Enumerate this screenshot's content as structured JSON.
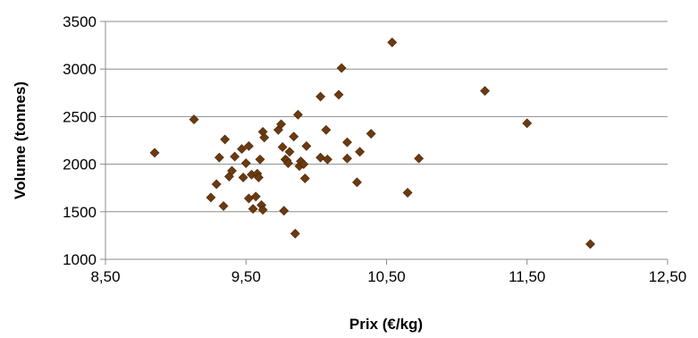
{
  "chart_data": {
    "type": "scatter",
    "title": "",
    "xlabel": "Prix (€/kg)",
    "ylabel": "Volume (tonnes)",
    "xlim": [
      8.5,
      12.5
    ],
    "ylim": [
      1000,
      3500
    ],
    "x_ticks": [
      8.5,
      9.5,
      10.5,
      11.5,
      12.5
    ],
    "x_tick_labels": [
      "8,50",
      "9,50",
      "10,50",
      "11,50",
      "12,50"
    ],
    "y_ticks": [
      1000,
      1500,
      2000,
      2500,
      3000,
      3500
    ],
    "y_tick_labels": [
      "1000",
      "1500",
      "2000",
      "2500",
      "3000",
      "3500"
    ],
    "grid": "horizontal",
    "legend": "none",
    "marker_color": "#6b3a10",
    "series": [
      {
        "points": [
          [
            8.85,
            2120
          ],
          [
            9.13,
            2470
          ],
          [
            9.25,
            1650
          ],
          [
            9.29,
            1790
          ],
          [
            9.31,
            2070
          ],
          [
            9.34,
            1560
          ],
          [
            9.35,
            2260
          ],
          [
            9.38,
            1870
          ],
          [
            9.4,
            1930
          ],
          [
            9.42,
            2080
          ],
          [
            9.47,
            2160
          ],
          [
            9.48,
            1860
          ],
          [
            9.5,
            2010
          ],
          [
            9.52,
            2190
          ],
          [
            9.52,
            1640
          ],
          [
            9.54,
            1890
          ],
          [
            9.55,
            1530
          ],
          [
            9.57,
            1660
          ],
          [
            9.58,
            1900
          ],
          [
            9.59,
            1860
          ],
          [
            9.6,
            2050
          ],
          [
            9.61,
            1570
          ],
          [
            9.62,
            1520
          ],
          [
            9.62,
            2340
          ],
          [
            9.63,
            2280
          ],
          [
            9.73,
            2360
          ],
          [
            9.75,
            2420
          ],
          [
            9.76,
            2180
          ],
          [
            9.77,
            1510
          ],
          [
            9.78,
            2050
          ],
          [
            9.79,
            2040
          ],
          [
            9.8,
            2010
          ],
          [
            9.81,
            2130
          ],
          [
            9.84,
            2290
          ],
          [
            9.85,
            1270
          ],
          [
            9.87,
            2520
          ],
          [
            9.88,
            1980
          ],
          [
            9.89,
            2030
          ],
          [
            9.91,
            2000
          ],
          [
            9.92,
            1850
          ],
          [
            9.93,
            2190
          ],
          [
            10.03,
            2710
          ],
          [
            10.03,
            2070
          ],
          [
            10.07,
            2360
          ],
          [
            10.08,
            2050
          ],
          [
            10.16,
            2730
          ],
          [
            10.18,
            3010
          ],
          [
            10.22,
            2060
          ],
          [
            10.22,
            2230
          ],
          [
            10.29,
            1810
          ],
          [
            10.31,
            2130
          ],
          [
            10.39,
            2320
          ],
          [
            10.54,
            3280
          ],
          [
            10.65,
            1700
          ],
          [
            10.73,
            2060
          ],
          [
            11.2,
            2770
          ],
          [
            11.5,
            2430
          ],
          [
            11.95,
            1160
          ]
        ]
      }
    ]
  }
}
